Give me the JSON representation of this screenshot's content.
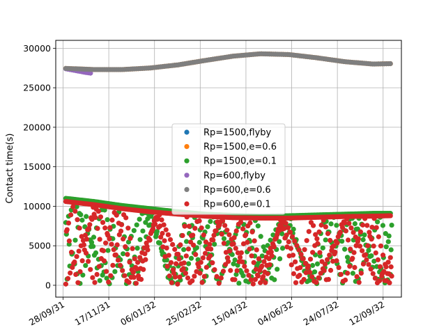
{
  "chart_data": {
    "type": "scatter",
    "title": "",
    "xlabel": "",
    "ylabel": "Contact time(s)",
    "x_range": [
      "2031-09-20",
      "2032-10-02"
    ],
    "ylim": [
      -1500,
      31000
    ],
    "grid": true,
    "legend_position": "center",
    "x_tick_labels": [
      {
        "date": "2031-09-28",
        "label": "28/09/31"
      },
      {
        "date": "2031-11-17",
        "label": "17/11/31"
      },
      {
        "date": "2032-01-06",
        "label": "06/01/32"
      },
      {
        "date": "2032-02-25",
        "label": "25/02/32"
      },
      {
        "date": "2032-04-15",
        "label": "15/04/32"
      },
      {
        "date": "2032-06-04",
        "label": "04/06/32"
      },
      {
        "date": "2032-07-24",
        "label": "24/07/32"
      },
      {
        "date": "2032-09-12",
        "label": "12/09/32"
      }
    ],
    "y_ticks": [
      0,
      5000,
      10000,
      15000,
      20000,
      25000,
      30000
    ],
    "y_tick_labels": [
      "0",
      "5000",
      "10000",
      "15000",
      "20000",
      "25000",
      "30000"
    ],
    "series": [
      {
        "name": "Rp=1500,flyby",
        "color": "#1f77b4",
        "points": []
      },
      {
        "name": "Rp=1500,e=0.6",
        "color": "#ff7f0e",
        "points": [
          [
            "2031-10-01",
            27450
          ],
          [
            "2031-11-01",
            27300
          ],
          [
            "2031-12-01",
            27300
          ],
          [
            "2032-01-01",
            27500
          ],
          [
            "2032-02-01",
            27900
          ],
          [
            "2032-03-01",
            28450
          ],
          [
            "2032-04-01",
            29000
          ],
          [
            "2032-05-01",
            29300
          ],
          [
            "2032-06-01",
            29200
          ],
          [
            "2032-07-01",
            28800
          ],
          [
            "2032-08-01",
            28300
          ],
          [
            "2032-09-01",
            28000
          ],
          [
            "2032-09-20",
            28050
          ]
        ]
      },
      {
        "name": "Rp=1500,e=0.1",
        "color": "#2ca02c",
        "upper": [
          [
            "2031-10-01",
            11000
          ],
          [
            "2031-11-01",
            10600
          ],
          [
            "2031-12-01",
            10100
          ],
          [
            "2032-01-01",
            9700
          ],
          [
            "2032-02-01",
            9300
          ],
          [
            "2032-03-01",
            9000
          ],
          [
            "2032-04-01",
            8850
          ],
          [
            "2032-05-01",
            8750
          ],
          [
            "2032-06-01",
            8800
          ],
          [
            "2032-07-01",
            8900
          ],
          [
            "2032-08-01",
            9000
          ],
          [
            "2032-09-01",
            9100
          ],
          [
            "2032-09-20",
            9100
          ]
        ],
        "phase": 0.37,
        "lobes": 4.7,
        "count": 120
      },
      {
        "name": "Rp=600,flyby",
        "color": "#9467bd",
        "points": [
          [
            "2031-10-01",
            27400
          ],
          [
            "2031-10-08",
            27250
          ],
          [
            "2031-10-15",
            27100
          ],
          [
            "2031-10-22",
            26950
          ],
          [
            "2031-10-28",
            26850
          ]
        ]
      },
      {
        "name": "Rp=600,e=0.6",
        "color": "#7f7f7f",
        "points": [
          [
            "2031-10-01",
            27450
          ],
          [
            "2031-11-01",
            27300
          ],
          [
            "2031-12-01",
            27300
          ],
          [
            "2032-01-01",
            27500
          ],
          [
            "2032-02-01",
            27900
          ],
          [
            "2032-03-01",
            28450
          ],
          [
            "2032-04-01",
            29000
          ],
          [
            "2032-05-01",
            29300
          ],
          [
            "2032-06-01",
            29200
          ],
          [
            "2032-07-01",
            28800
          ],
          [
            "2032-08-01",
            28300
          ],
          [
            "2032-09-01",
            28000
          ],
          [
            "2032-09-20",
            28050
          ]
        ]
      },
      {
        "name": "Rp=600,e=0.1",
        "color": "#d62728",
        "upper": [
          [
            "2031-10-01",
            10600
          ],
          [
            "2031-11-01",
            10200
          ],
          [
            "2031-12-01",
            9700
          ],
          [
            "2032-01-01",
            9300
          ],
          [
            "2032-02-01",
            9000
          ],
          [
            "2032-03-01",
            8750
          ],
          [
            "2032-04-01",
            8550
          ],
          [
            "2032-05-01",
            8500
          ],
          [
            "2032-06-01",
            8500
          ],
          [
            "2032-07-01",
            8600
          ],
          [
            "2032-08-01",
            8700
          ],
          [
            "2032-09-01",
            8750
          ],
          [
            "2032-09-20",
            8800
          ]
        ],
        "phase": 0.0,
        "lobes": 5.2,
        "count": 150
      }
    ]
  }
}
